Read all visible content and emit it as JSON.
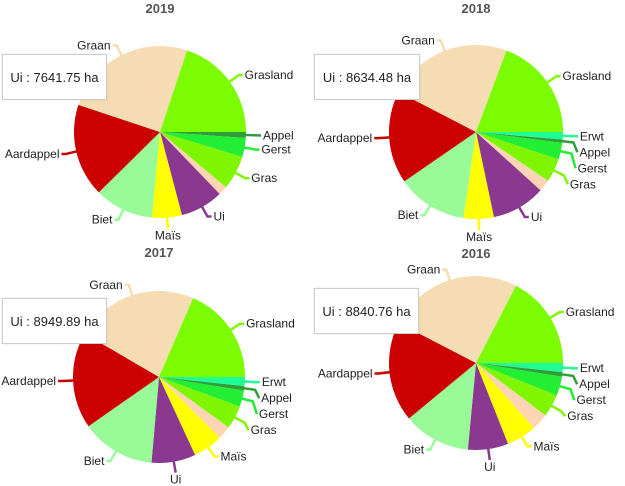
{
  "colors": {
    "Erwt": "#1fff95",
    "Appel": "#2f9e3a",
    "Gerst": "#22ee33",
    "Gras": "#80f500",
    "peach": "#fdd5b5",
    "Ui": "#8b3990",
    "Maïs": "#ffff00",
    "Biet": "#98fb98",
    "Aardappel": "#cc0000",
    "Graan": "#f5dcb3",
    "Grasland": "#7cfc00"
  },
  "chart_data": [
    {
      "type": "pie",
      "title": "2019",
      "unit": "%",
      "slices": [
        {
          "name": "Appel",
          "value": 1.1
        },
        {
          "name": "Gerst",
          "value": 3.6
        },
        {
          "name": "Gras",
          "value": 6.4
        },
        {
          "name": "",
          "value": 1.7,
          "color_key": "peach"
        },
        {
          "name": "Ui",
          "value": 8.1
        },
        {
          "name": "Maïs",
          "value": 5.6
        },
        {
          "name": "Biet",
          "value": 11.1
        },
        {
          "name": "Aardappel",
          "value": 17.5
        },
        {
          "name": "Graan",
          "value": 25.0
        },
        {
          "name": "Grasland",
          "value": 19.9
        }
      ],
      "tooltip": "Ui : 7641.75 ha"
    },
    {
      "type": "pie",
      "title": "2018",
      "unit": "%",
      "slices": [
        {
          "name": "Erwt",
          "value": 1.4
        },
        {
          "name": "Appel",
          "value": 0.6
        },
        {
          "name": "Gerst",
          "value": 3.1
        },
        {
          "name": "Gras",
          "value": 4.4
        },
        {
          "name": "",
          "value": 2.2,
          "color_key": "peach"
        },
        {
          "name": "Ui",
          "value": 10.0
        },
        {
          "name": "Maïs",
          "value": 5.6
        },
        {
          "name": "Biet",
          "value": 13.1
        },
        {
          "name": "Aardappel",
          "value": 17.2
        },
        {
          "name": "Graan",
          "value": 23.1
        },
        {
          "name": "Grasland",
          "value": 19.3
        }
      ],
      "tooltip": "Ui : 8634.48 ha"
    },
    {
      "type": "pie",
      "title": "2017",
      "unit": "%",
      "slices": [
        {
          "name": "Erwt",
          "value": 1.7
        },
        {
          "name": "Appel",
          "value": 0.8
        },
        {
          "name": "Gerst",
          "value": 3.1
        },
        {
          "name": "Gras",
          "value": 4.4
        },
        {
          "name": "",
          "value": 2.5,
          "color_key": "peach"
        },
        {
          "name": "Maïs",
          "value": 5.6
        },
        {
          "name": "Ui",
          "value": 8.3
        },
        {
          "name": "Biet",
          "value": 13.9
        },
        {
          "name": "Aardappel",
          "value": 18.1
        },
        {
          "name": "Graan",
          "value": 23.1
        },
        {
          "name": "Grasland",
          "value": 18.5
        }
      ],
      "tooltip": "Ui : 8949.89 ha"
    },
    {
      "type": "pie",
      "title": "2016",
      "unit": "%",
      "slices": [
        {
          "name": "Erwt",
          "value": 1.7
        },
        {
          "name": "Appel",
          "value": 0.8
        },
        {
          "name": "Gerst",
          "value": 3.6
        },
        {
          "name": "Gras",
          "value": 4.2
        },
        {
          "name": "",
          "value": 3.1,
          "color_key": "peach"
        },
        {
          "name": "Maïs",
          "value": 5.6
        },
        {
          "name": "Ui",
          "value": 7.5
        },
        {
          "name": "Biet",
          "value": 12.5
        },
        {
          "name": "Aardappel",
          "value": 18.6
        },
        {
          "name": "Graan",
          "value": 25.0
        },
        {
          "name": "Grasland",
          "value": 17.4
        }
      ],
      "tooltip": "Ui : 8840.76 ha"
    }
  ]
}
